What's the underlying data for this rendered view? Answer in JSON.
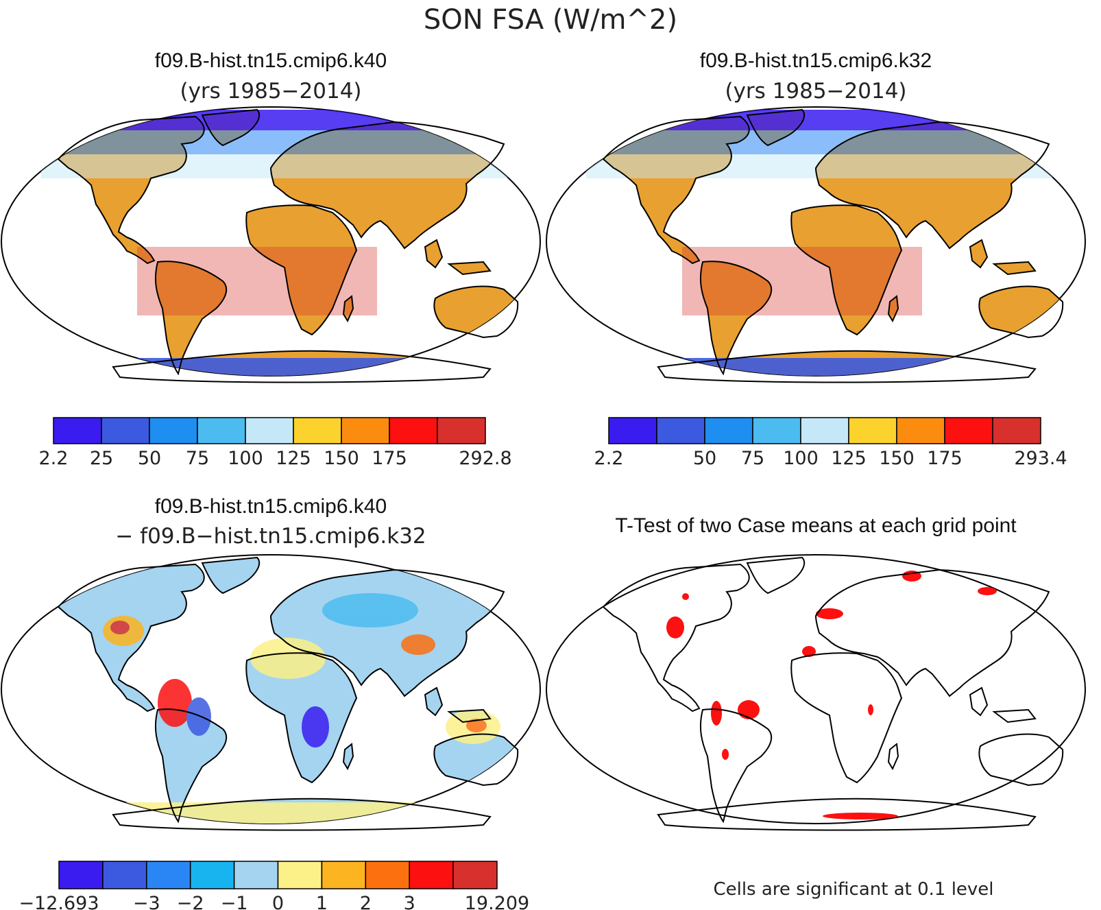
{
  "figure": {
    "title": "SON FSA (W/m^2)"
  },
  "panels": [
    {
      "id": "case1",
      "title": "f09.B-hist.tn15.cmip6.k40",
      "subtitle": "(yrs 1985−2014)",
      "colorbar": {
        "colors": [
          "#3a1cf0",
          "#3c5ae0",
          "#1e8ef0",
          "#4cbcf0",
          "#c4e8f8",
          "#fcd22c",
          "#fc8c10",
          "#fc1010",
          "#d8302c"
        ],
        "labels": [
          "2.2",
          "25",
          "50",
          "75",
          "100",
          "125",
          "150",
          "175",
          "",
          "292.8"
        ]
      }
    },
    {
      "id": "case2",
      "title": "f09.B-hist.tn15.cmip6.k32",
      "subtitle": "(yrs 1985−2014)",
      "colorbar": {
        "colors": [
          "#3a1cf0",
          "#3c5ae0",
          "#1e8ef0",
          "#4cbcf0",
          "#c4e8f8",
          "#fcd22c",
          "#fc8c10",
          "#fc1010",
          "#d8302c"
        ],
        "labels": [
          "2.2",
          "",
          "50",
          "75",
          "100",
          "125",
          "150",
          "175",
          "",
          "293.4"
        ]
      }
    },
    {
      "id": "diff",
      "title": "f09.B-hist.tn15.cmip6.k40",
      "subtitle": "− f09.B−hist.tn15.cmip6.k32",
      "colorbar": {
        "colors": [
          "#3a1cf0",
          "#3c5ae0",
          "#2a86f4",
          "#18b4f0",
          "#a4d4f0",
          "#fcf088",
          "#fcb420",
          "#fc7010",
          "#fc1010",
          "#d8302c"
        ],
        "labels": [
          "−12.693",
          "",
          "−3",
          "−2",
          "−1",
          "0",
          "1",
          "2",
          "3",
          "",
          "19.209"
        ]
      }
    },
    {
      "id": "ttest",
      "title": "T-Test of two Case means at each grid point",
      "note": "Cells are significant at 0.1 level"
    }
  ]
}
